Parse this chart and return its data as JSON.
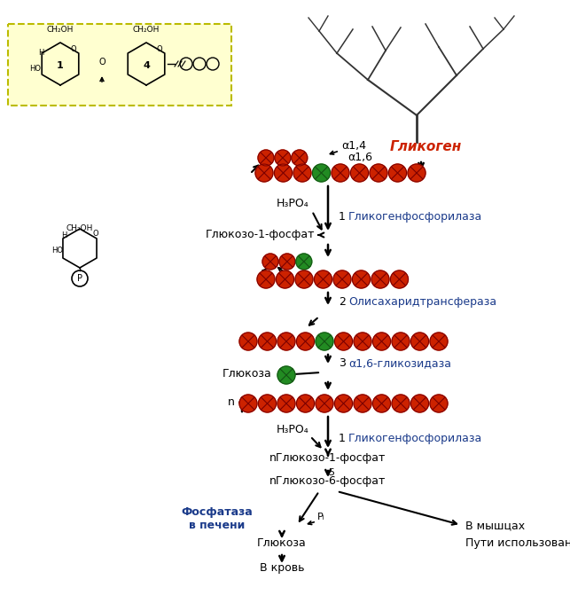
{
  "bg_color": "#ffffff",
  "red_color": "#cc2200",
  "green_color": "#228B22",
  "blue_text_color": "#1a3a8a",
  "dark_red_text": "#cc2200",
  "black": "#000000",
  "yellow_bg": "#ffffd0",
  "yellow_border": "#bbbb00",
  "enzyme1": "Гликогенфосфорилаза",
  "enzyme2": "Олисахаридтрансфераза",
  "enzyme3": "α1,6-гликозидаза",
  "label_glycogen": "Гликоген",
  "label_a14": "α1,4",
  "label_a16": "α1,6",
  "label_h3po4": "H₃PO₄",
  "label_g1p": "Глюкозо-1-фосфат",
  "label_glucose": "Глюкоза",
  "label_ng1p": "nГлюкозо-1-фосфат",
  "label_ng6p": "nГлюкозо-6-фосфат",
  "label_fosfataza": "Фосфатаза\nв печени",
  "label_vmysh": "В мышцах",
  "label_puti": "Пути использования",
  "label_glyukoza": "Глюкоза",
  "label_vkrov": "В кровь",
  "label_pi": "Pᵢ",
  "label_5": "5",
  "label_1": "1",
  "label_2": "2",
  "label_3": "3",
  "label_n": "n"
}
